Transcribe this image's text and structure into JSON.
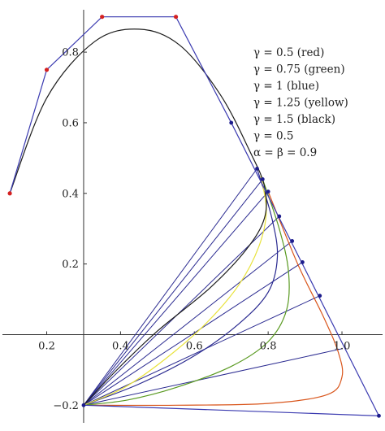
{
  "chart_data": {
    "type": "line",
    "title": "",
    "xlabel": "",
    "ylabel": "",
    "xlim": [
      0.08,
      1.11
    ],
    "ylim": [
      -0.25,
      0.92
    ],
    "x_ticks": [
      {
        "value": 0.2,
        "label": "0.2"
      },
      {
        "value": 0.4,
        "label": "0.4"
      },
      {
        "value": 0.6,
        "label": "0.6"
      },
      {
        "value": 0.8,
        "label": "0.8"
      },
      {
        "value": 1.0,
        "label": "1.0"
      }
    ],
    "y_ticks": [
      {
        "value": -0.2,
        "label": "−0.2"
      },
      {
        "value": 0.2,
        "label": "0.2"
      },
      {
        "value": 0.4,
        "label": "0.4"
      },
      {
        "value": 0.6,
        "label": "0.6"
      },
      {
        "value": 0.8,
        "label": "0.8"
      }
    ],
    "legend": {
      "placement": "top-right",
      "lines": [
        "γ = 0.5 (red)",
        "γ = 0.75 (green)",
        "γ = 1 (blue)",
        "γ = 1.25 (yellow)",
        "γ = 1.5 (black)",
        "γ = 0.5",
        "α = β = 0.9"
      ]
    },
    "control_polygon": {
      "color": "#3a3ab0",
      "points": [
        [
          0.1,
          0.4
        ],
        [
          0.2,
          0.75
        ],
        [
          0.35,
          0.9
        ],
        [
          0.55,
          0.9
        ],
        [
          0.7,
          0.6
        ],
        [
          1.1,
          -0.23
        ],
        [
          0.3,
          -0.2
        ]
      ],
      "red_points": [
        [
          0.1,
          0.4
        ],
        [
          0.2,
          0.75
        ],
        [
          0.35,
          0.9
        ],
        [
          0.55,
          0.9
        ]
      ],
      "blue_points": [
        [
          0.7,
          0.6
        ],
        [
          0.77,
          0.47
        ],
        [
          0.785,
          0.44
        ],
        [
          0.8,
          0.405
        ],
        [
          0.83,
          0.335
        ],
        [
          0.865,
          0.265
        ],
        [
          0.893,
          0.205
        ],
        [
          0.94,
          0.11
        ],
        [
          1.1,
          -0.23
        ]
      ]
    },
    "fan_lines": {
      "color": "#2a2a90",
      "origin": [
        0.3,
        -0.2
      ],
      "endpoints": [
        [
          0.77,
          0.47
        ],
        [
          0.785,
          0.44
        ],
        [
          0.8,
          0.405
        ],
        [
          0.83,
          0.335
        ],
        [
          0.865,
          0.265
        ],
        [
          0.893,
          0.205
        ],
        [
          0.94,
          0.11
        ],
        [
          1.0,
          -0.04
        ]
      ]
    },
    "series": [
      {
        "name": "γ = 0.5 (red)",
        "color": "#d9561c",
        "points": [
          [
            0.8,
            0.405
          ],
          [
            0.88,
            0.2
          ],
          [
            0.95,
            0.05
          ],
          [
            0.99,
            -0.05
          ],
          [
            1.0,
            -0.12
          ],
          [
            0.96,
            -0.17
          ],
          [
            0.8,
            -0.195
          ],
          [
            0.55,
            -0.2
          ],
          [
            0.3,
            -0.2
          ]
        ]
      },
      {
        "name": "γ = 0.75 (green)",
        "color": "#5a9a22",
        "points": [
          [
            0.785,
            0.44
          ],
          [
            0.83,
            0.3
          ],
          [
            0.855,
            0.18
          ],
          [
            0.85,
            0.07
          ],
          [
            0.8,
            -0.02
          ],
          [
            0.7,
            -0.09
          ],
          [
            0.55,
            -0.15
          ],
          [
            0.42,
            -0.185
          ],
          [
            0.3,
            -0.2
          ]
        ]
      },
      {
        "name": "γ = 1 (blue)",
        "color": "#2a2a90",
        "points": [
          [
            0.77,
            0.47
          ],
          [
            0.81,
            0.33
          ],
          [
            0.825,
            0.22
          ],
          [
            0.8,
            0.12
          ],
          [
            0.72,
            0.03
          ],
          [
            0.6,
            -0.06
          ],
          [
            0.45,
            -0.14
          ],
          [
            0.3,
            -0.2
          ]
        ]
      },
      {
        "name": "γ = 1.25 (yellow)",
        "color": "#e8e23a",
        "points": [
          [
            0.78,
            0.45
          ],
          [
            0.795,
            0.35
          ],
          [
            0.775,
            0.25
          ],
          [
            0.72,
            0.14
          ],
          [
            0.63,
            0.03
          ],
          [
            0.52,
            -0.07
          ],
          [
            0.41,
            -0.15
          ],
          [
            0.3,
            -0.2
          ]
        ]
      },
      {
        "name": "γ = 1.5 (black)",
        "color": "#1e1e1e",
        "points": [
          [
            0.1,
            0.4
          ],
          [
            0.2,
            0.67
          ],
          [
            0.33,
            0.83
          ],
          [
            0.45,
            0.865
          ],
          [
            0.56,
            0.82
          ],
          [
            0.67,
            0.68
          ],
          [
            0.75,
            0.52
          ],
          [
            0.79,
            0.42
          ],
          [
            0.79,
            0.33
          ],
          [
            0.74,
            0.24
          ],
          [
            0.64,
            0.13
          ],
          [
            0.5,
            0.01
          ],
          [
            0.39,
            -0.1
          ],
          [
            0.3,
            -0.2
          ]
        ]
      }
    ]
  }
}
